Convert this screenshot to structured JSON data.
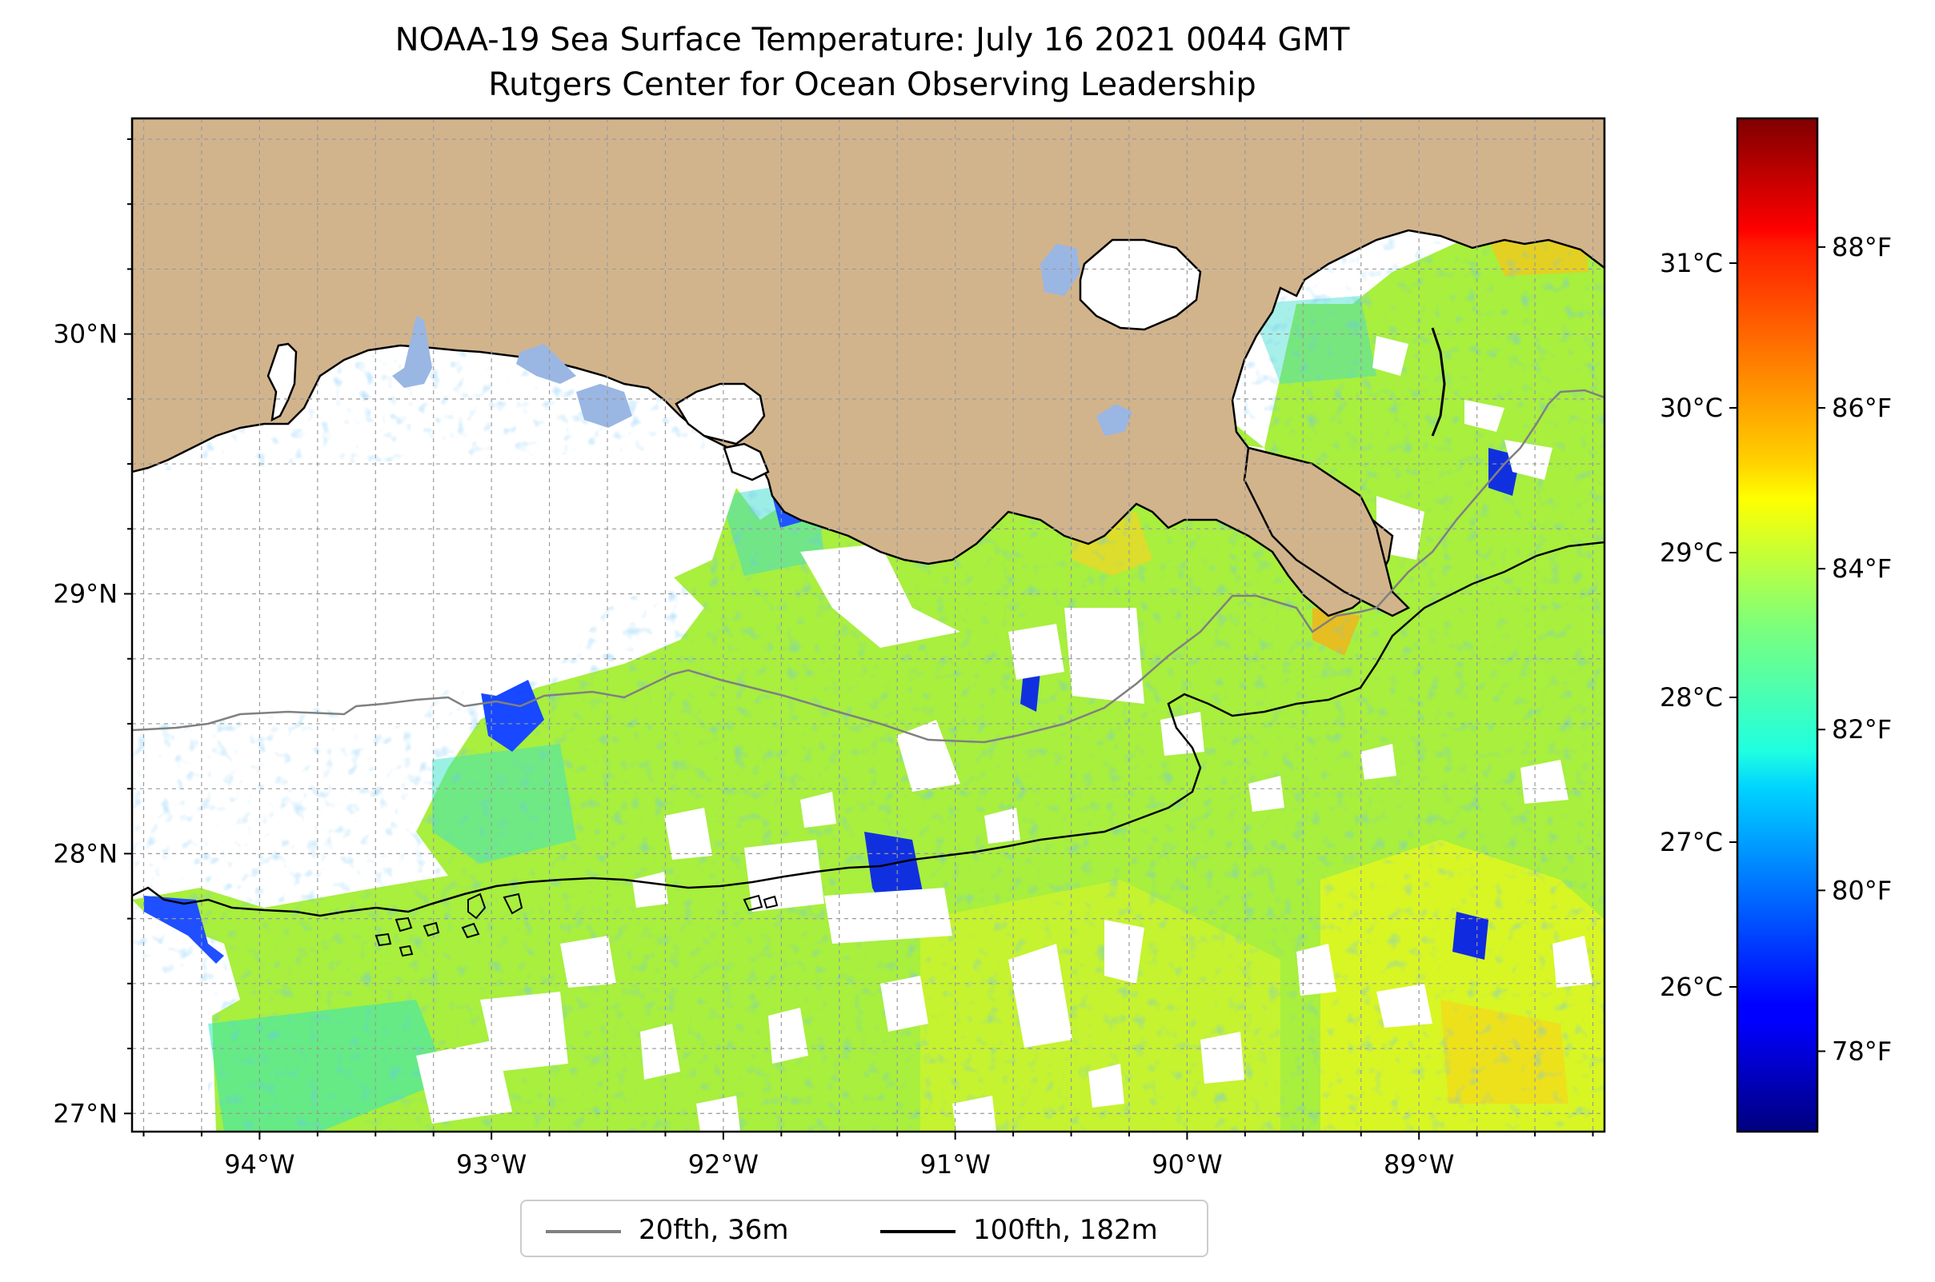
{
  "title": {
    "line1": "NOAA-19 Sea Surface Temperature: July 16 2021 0044 GMT",
    "line2": "Rutgers Center for Ocean Observing Leadership"
  },
  "map": {
    "extent_lon": [
      -94.55,
      -88.2
    ],
    "extent_lat": [
      26.93,
      30.83
    ],
    "lon_ticks": [
      {
        "value": -94,
        "label": "94°W"
      },
      {
        "value": -93,
        "label": "93°W"
      },
      {
        "value": -92,
        "label": "92°W"
      },
      {
        "value": -91,
        "label": "91°W"
      },
      {
        "value": -90,
        "label": "90°W"
      },
      {
        "value": -89,
        "label": "89°W"
      }
    ],
    "lat_ticks": [
      {
        "value": 30,
        "label": "30°N"
      },
      {
        "value": 29,
        "label": "29°N"
      },
      {
        "value": 28,
        "label": "28°N"
      },
      {
        "value": 27,
        "label": "27°N"
      }
    ],
    "grid": "dashed, every 0.25°",
    "colors": {
      "land": "#d2b48c",
      "lakes": "#9ab6e3",
      "no_data": "#ffffff",
      "coastline": "#000000"
    }
  },
  "colorbar": {
    "colormap": "jet",
    "range_c": [
      25.0,
      32.0
    ],
    "celsius_ticks": [
      {
        "value": 31,
        "label": "31°C"
      },
      {
        "value": 30,
        "label": "30°C"
      },
      {
        "value": 29,
        "label": "29°C"
      },
      {
        "value": 28,
        "label": "28°C"
      },
      {
        "value": 27,
        "label": "27°C"
      },
      {
        "value": 26,
        "label": "26°C"
      }
    ],
    "fahrenheit_ticks": [
      {
        "value": 88,
        "label": "88°F"
      },
      {
        "value": 86,
        "label": "86°F"
      },
      {
        "value": 84,
        "label": "84°F"
      },
      {
        "value": 82,
        "label": "82°F"
      },
      {
        "value": 80,
        "label": "80°F"
      },
      {
        "value": 78,
        "label": "78°F"
      }
    ]
  },
  "legend": {
    "items": [
      {
        "label": "20fth, 36m",
        "color": "#808080"
      },
      {
        "label": "100fth, 182m",
        "color": "#000000"
      }
    ]
  }
}
